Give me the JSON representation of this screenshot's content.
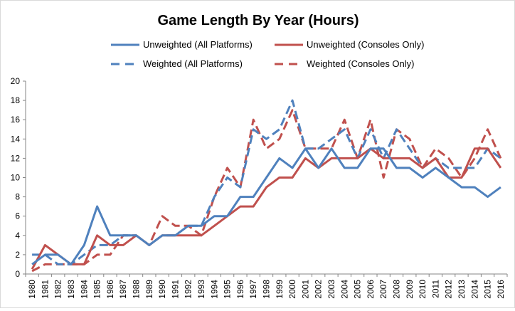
{
  "chart_data": {
    "type": "line",
    "title": "Game Length By Year (Hours)",
    "xlabel": "",
    "ylabel": "",
    "ylim": [
      0,
      20
    ],
    "yticks": [
      0,
      2,
      4,
      6,
      8,
      10,
      12,
      14,
      16,
      18,
      20
    ],
    "grid": false,
    "legend_placement": "top",
    "categories": [
      "1980",
      "1981",
      "1982",
      "1983",
      "1984",
      "1985",
      "1986",
      "1987",
      "1988",
      "1989",
      "1990",
      "1991",
      "1992",
      "1993",
      "1994",
      "1995",
      "1996",
      "1997",
      "1998",
      "1999",
      "2000",
      "2001",
      "2002",
      "2003",
      "2004",
      "2005",
      "2006",
      "2007",
      "2008",
      "2009",
      "2010",
      "2011",
      "2012",
      "2013",
      "2014",
      "2015",
      "2016"
    ],
    "series": [
      {
        "name": "Unweighted (All Platforms)",
        "color": "#4f81bd",
        "dash": false,
        "values": [
          1,
          2,
          2,
          1,
          3,
          7,
          4,
          4,
          4,
          3,
          4,
          4,
          5,
          5,
          6,
          6,
          8,
          8,
          10,
          12,
          11,
          13,
          11,
          13,
          11,
          11,
          13,
          13,
          11,
          11,
          10,
          11,
          10,
          9,
          9,
          8,
          9
        ]
      },
      {
        "name": "Unweighted (Consoles Only)",
        "color": "#c0504d",
        "dash": false,
        "values": [
          0.5,
          3,
          2,
          1,
          1,
          4,
          3,
          3,
          4,
          3,
          4,
          4,
          4,
          4,
          5,
          6,
          7,
          7,
          9,
          10,
          10,
          12,
          11,
          12,
          12,
          12,
          13,
          12,
          12,
          12,
          11,
          12,
          10,
          10,
          13,
          13,
          11
        ]
      },
      {
        "name": "Weighted (All Platforms)",
        "color": "#4f81bd",
        "dash": true,
        "values": [
          2,
          2,
          1,
          1,
          2,
          3,
          3,
          4,
          4,
          3,
          4,
          4,
          5,
          5,
          8,
          10,
          9,
          15,
          14,
          15,
          18,
          13,
          13,
          14,
          15,
          12,
          15,
          12,
          15,
          13,
          11,
          12,
          11,
          11,
          11,
          13,
          12
        ]
      },
      {
        "name": "Weighted (Consoles Only)",
        "color": "#c0504d",
        "dash": true,
        "values": [
          0.3,
          1,
          1,
          1,
          1,
          2,
          2,
          4,
          4,
          3,
          6,
          5,
          5,
          4,
          8,
          11,
          9,
          16,
          13,
          14,
          17,
          13,
          13,
          13,
          16,
          12,
          16,
          10,
          15,
          14,
          11,
          13,
          12,
          10,
          12,
          15,
          12
        ]
      }
    ]
  }
}
